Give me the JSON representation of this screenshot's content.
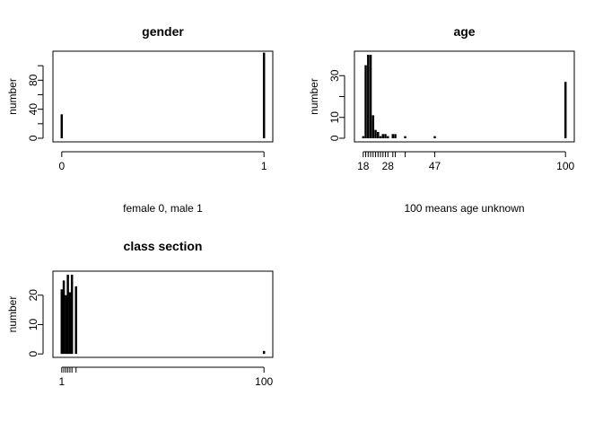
{
  "chart_data": [
    {
      "id": "gender",
      "type": "bar",
      "title": "gender",
      "ylabel": "number",
      "xlabel": "female 0, male  1",
      "xlim": [
        0,
        1
      ],
      "ylim": [
        0,
        115
      ],
      "x_ticks": [
        0,
        1
      ],
      "x_tick_labels": [
        "0",
        "1"
      ],
      "y_ticks": [
        0,
        20,
        40,
        60,
        80,
        100
      ],
      "y_tick_labels": [
        "0",
        "",
        "40",
        "",
        "80",
        ""
      ],
      "x": [
        0,
        1
      ],
      "values": [
        33,
        118
      ]
    },
    {
      "id": "age",
      "type": "bar",
      "title": "age",
      "ylabel": "number",
      "xlabel": "100 means age unknown",
      "xlim": [
        18,
        100
      ],
      "ylim": [
        0,
        40
      ],
      "x_ticks": [
        18,
        19,
        20,
        21,
        22,
        23,
        24,
        25,
        26,
        27,
        28,
        30,
        31,
        35,
        47,
        100
      ],
      "x_tick_labels": [
        "18",
        "",
        "",
        "",
        "",
        "",
        "",
        "",
        "",
        "",
        "28",
        "",
        "",
        "",
        "47",
        "100"
      ],
      "y_ticks": [
        0,
        10,
        20,
        30
      ],
      "y_tick_labels": [
        "0",
        "10",
        "",
        "30"
      ],
      "x": [
        18,
        19,
        20,
        21,
        22,
        23,
        24,
        25,
        26,
        27,
        28,
        30,
        31,
        35,
        47,
        100
      ],
      "values": [
        1,
        35,
        40,
        40,
        11,
        4,
        3,
        1,
        2,
        2,
        1,
        2,
        2,
        1,
        1,
        27
      ]
    },
    {
      "id": "class-section",
      "type": "bar",
      "title": "class section",
      "ylabel": "number",
      "xlabel": "",
      "xlim": [
        1,
        100
      ],
      "ylim": [
        0,
        27
      ],
      "x_ticks": [
        1,
        2,
        3,
        4,
        5,
        6,
        8
      ],
      "x_tick_labels": [
        "1",
        "",
        "",
        "",
        "",
        "",
        ""
      ],
      "x_extra_tick": 100,
      "x_extra_tick_label": "100",
      "y_ticks": [
        0,
        10,
        20
      ],
      "y_tick_labels": [
        "0",
        "10",
        "20"
      ],
      "x": [
        1,
        2,
        3,
        4,
        5,
        6,
        8,
        100
      ],
      "values": [
        22,
        25,
        20,
        27,
        21,
        27,
        23,
        1
      ]
    }
  ]
}
